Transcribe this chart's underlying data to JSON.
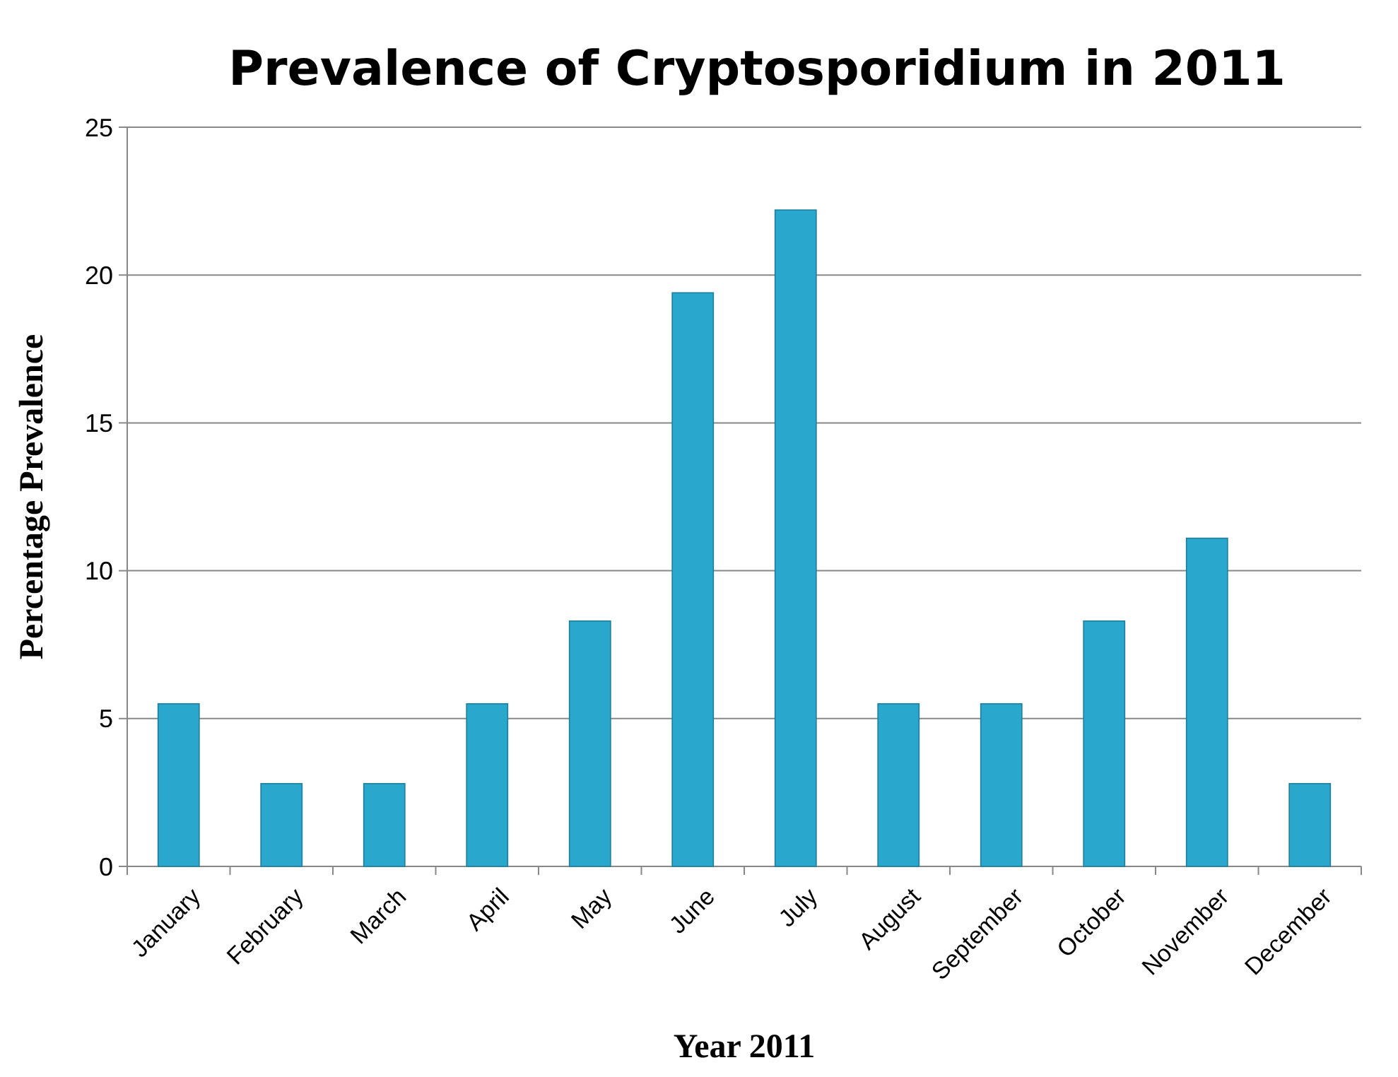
{
  "chart_data": {
    "type": "bar",
    "title": "Prevalence of Cryptosporidium in 2011",
    "xlabel": "Year 2011",
    "ylabel": "Percentage Prevalence",
    "categories": [
      "January",
      "February",
      "March",
      "April",
      "May",
      "June",
      "July",
      "August",
      "September",
      "October",
      "November",
      "December"
    ],
    "values": [
      5.5,
      2.8,
      2.8,
      5.5,
      8.3,
      19.4,
      22.2,
      5.5,
      5.5,
      8.3,
      11.1,
      2.8
    ],
    "color": "#2aa7cc",
    "ylim": [
      0,
      25
    ],
    "yticks": [
      0,
      5,
      10,
      15,
      20,
      25
    ],
    "grid": "y"
  }
}
